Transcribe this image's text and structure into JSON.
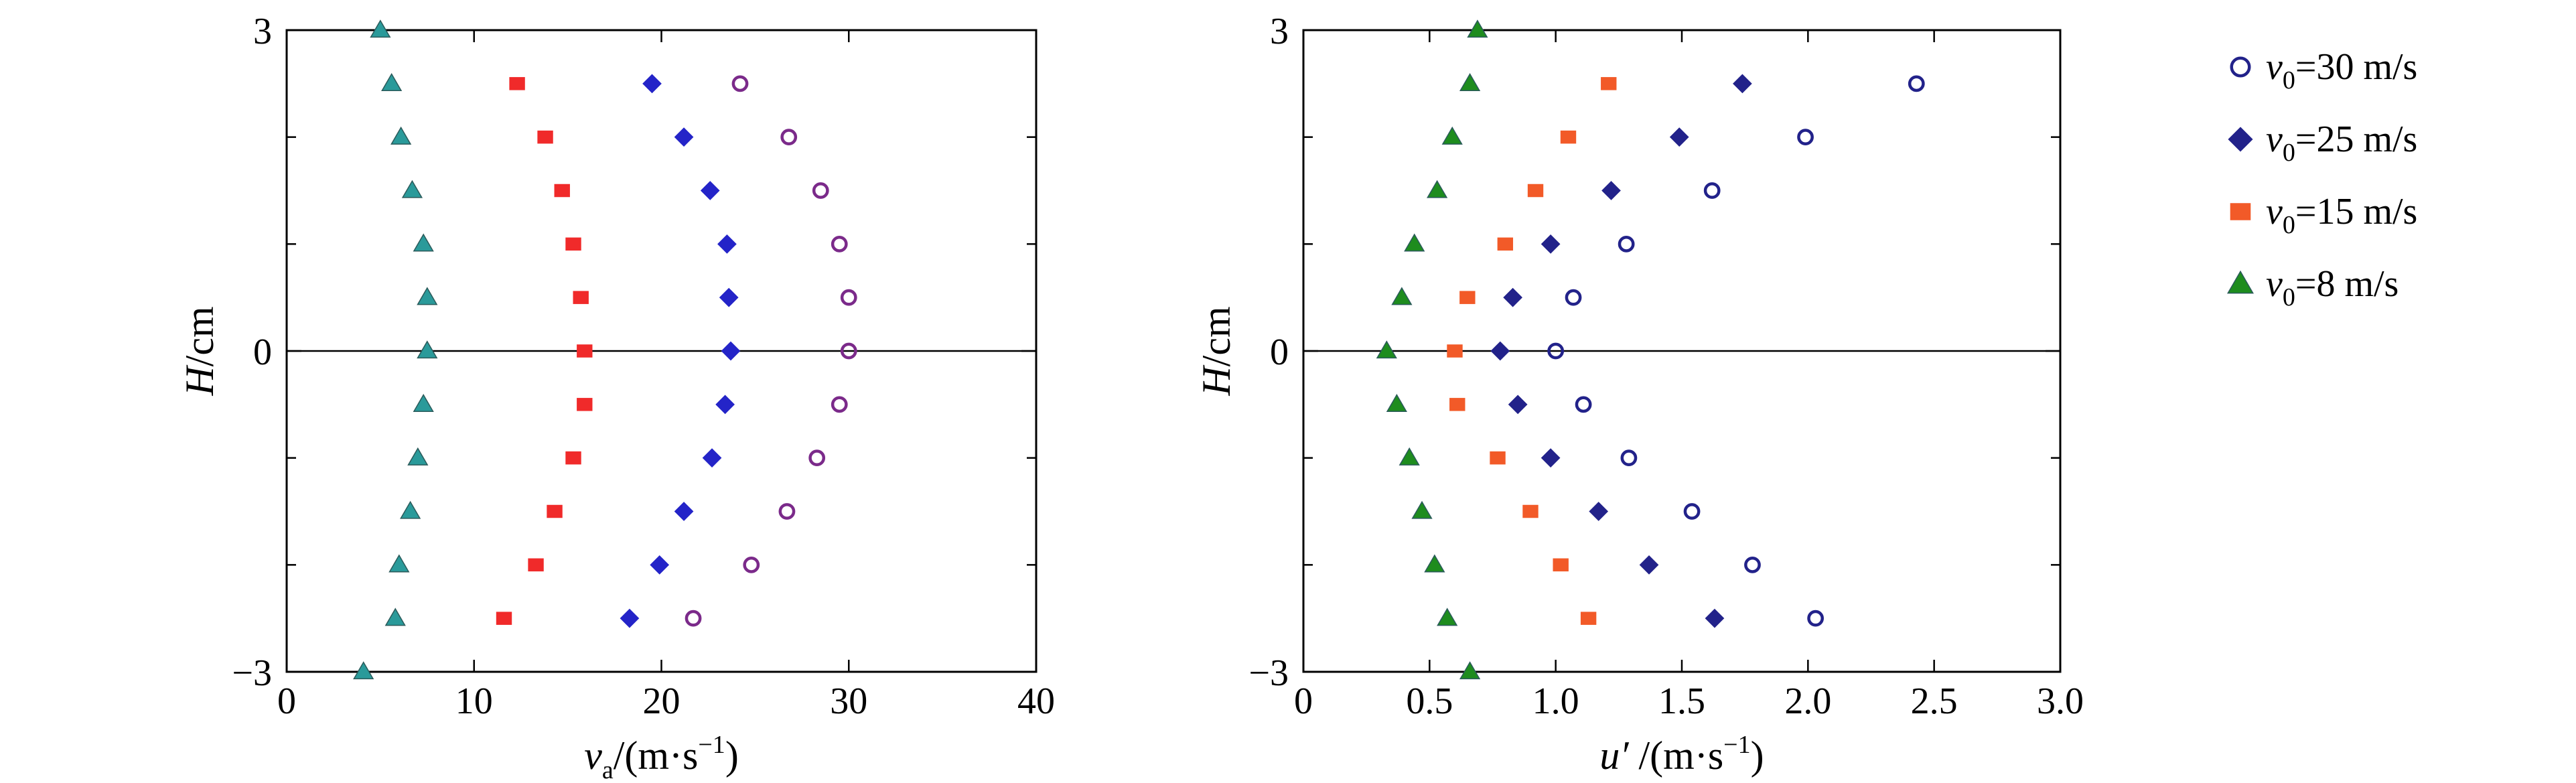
{
  "chart_data": [
    {
      "type": "scatter",
      "x_var": "v",
      "x_sub": "a",
      "x_unit": "/(m·s",
      "x_sup": "−1",
      "x_close": ")",
      "y_var": "H",
      "y_unit": "/cm",
      "xlim": [
        0,
        40
      ],
      "ylim": [
        -3,
        3
      ],
      "xticks": [
        "0",
        "10",
        "20",
        "30",
        "40"
      ],
      "yticks": [
        "−3",
        "0",
        "3"
      ],
      "xticks_values": [
        0,
        10,
        20,
        30,
        40
      ],
      "yticks_values": [
        -3,
        0,
        3
      ],
      "minor_yticks": [
        -2,
        -1,
        1,
        2
      ],
      "zero_line": true,
      "series": [
        {
          "marker": "circle-open",
          "color": "#7b2a8a",
          "x": [
            24.2,
            26.8,
            28.5,
            29.5,
            30.0,
            30.0,
            29.5,
            28.3,
            26.7,
            24.8,
            21.7
          ],
          "y": [
            2.5,
            2.0,
            1.5,
            1.0,
            0.5,
            0.0,
            -0.5,
            -1.0,
            -1.5,
            -2.0,
            -2.5
          ]
        },
        {
          "marker": "diamond",
          "color": "#2424c8",
          "x": [
            19.5,
            21.2,
            22.6,
            23.5,
            23.6,
            23.7,
            23.4,
            22.7,
            21.2,
            19.9,
            18.3
          ],
          "y": [
            2.5,
            2.0,
            1.5,
            1.0,
            0.5,
            0.0,
            -0.5,
            -1.0,
            -1.5,
            -2.0,
            -2.5
          ]
        },
        {
          "marker": "square",
          "color": "#f02a2a",
          "x": [
            12.3,
            13.8,
            14.7,
            15.3,
            15.7,
            15.9,
            15.9,
            15.3,
            14.3,
            13.3,
            11.6
          ],
          "y": [
            2.5,
            2.0,
            1.5,
            1.0,
            0.5,
            0.0,
            -0.5,
            -1.0,
            -1.5,
            -2.0,
            -2.5
          ]
        },
        {
          "marker": "triangle",
          "color": "#2a9a9a",
          "x": [
            5.0,
            5.6,
            6.1,
            6.7,
            7.3,
            7.5,
            7.5,
            7.3,
            7.0,
            6.6,
            6.0,
            5.8,
            4.1
          ],
          "y": [
            3.0,
            2.5,
            2.0,
            1.5,
            1.0,
            0.5,
            0.0,
            -0.5,
            -1.0,
            -1.5,
            -2.0,
            -2.5,
            -3.0
          ]
        }
      ]
    },
    {
      "type": "scatter",
      "x_var": "u′",
      "x_sub": "",
      "x_unit": " /(m·s",
      "x_sup": "−1",
      "x_close": ")",
      "y_var": "H",
      "y_unit": "/cm",
      "xlim": [
        0,
        3.0
      ],
      "ylim": [
        -3,
        3
      ],
      "xticks": [
        "0",
        "0.5",
        "1.0",
        "1.5",
        "2.0",
        "2.5",
        "3.0"
      ],
      "yticks": [
        "−3",
        "0",
        "3"
      ],
      "xticks_values": [
        0,
        0.5,
        1.0,
        1.5,
        2.0,
        2.5,
        3.0
      ],
      "yticks_values": [
        -3,
        0,
        3
      ],
      "minor_yticks": [
        -2,
        -1,
        1,
        2
      ],
      "zero_line": true,
      "series": [
        {
          "marker": "circle-open",
          "color": "#22228a",
          "x": [
            2.43,
            1.99,
            1.62,
            1.28,
            1.07,
            1.0,
            1.11,
            1.29,
            1.54,
            1.78,
            2.03
          ],
          "y": [
            2.5,
            2.0,
            1.5,
            1.0,
            0.5,
            0.0,
            -0.5,
            -1.0,
            -1.5,
            -2.0,
            -2.5
          ]
        },
        {
          "marker": "diamond",
          "color": "#22228a",
          "x": [
            1.74,
            1.49,
            1.22,
            0.98,
            0.83,
            0.78,
            0.85,
            0.98,
            1.17,
            1.37,
            1.63
          ],
          "y": [
            2.5,
            2.0,
            1.5,
            1.0,
            0.5,
            0.0,
            -0.5,
            -1.0,
            -1.5,
            -2.0,
            -2.5
          ]
        },
        {
          "marker": "square",
          "color": "#f25a28",
          "x": [
            1.21,
            1.05,
            0.92,
            0.8,
            0.65,
            0.6,
            0.61,
            0.77,
            0.9,
            1.02,
            1.13
          ],
          "y": [
            2.5,
            2.0,
            1.5,
            1.0,
            0.5,
            0.0,
            -0.5,
            -1.0,
            -1.5,
            -2.0,
            -2.5
          ]
        },
        {
          "marker": "triangle",
          "color": "#1e8c1e",
          "x": [
            0.69,
            0.66,
            0.59,
            0.53,
            0.44,
            0.39,
            0.33,
            0.37,
            0.42,
            0.47,
            0.52,
            0.57,
            0.66
          ],
          "y": [
            3.0,
            2.5,
            2.0,
            1.5,
            1.0,
            0.5,
            0.0,
            -0.5,
            -1.0,
            -1.5,
            -2.0,
            -2.5,
            -3.0
          ]
        }
      ]
    }
  ],
  "legend": {
    "placement": "right",
    "items": [
      {
        "marker": "circle-open",
        "color": "#22228a",
        "var": "v",
        "sub": "0",
        "text": "=30 m/s"
      },
      {
        "marker": "diamond",
        "color": "#22228a",
        "var": "v",
        "sub": "0",
        "text": "=25 m/s"
      },
      {
        "marker": "square",
        "color": "#f25a28",
        "var": "v",
        "sub": "0",
        "text": "=15 m/s"
      },
      {
        "marker": "triangle",
        "color": "#1e8c1e",
        "var": "v",
        "sub": "0",
        "text": "=8 m/s"
      }
    ]
  }
}
